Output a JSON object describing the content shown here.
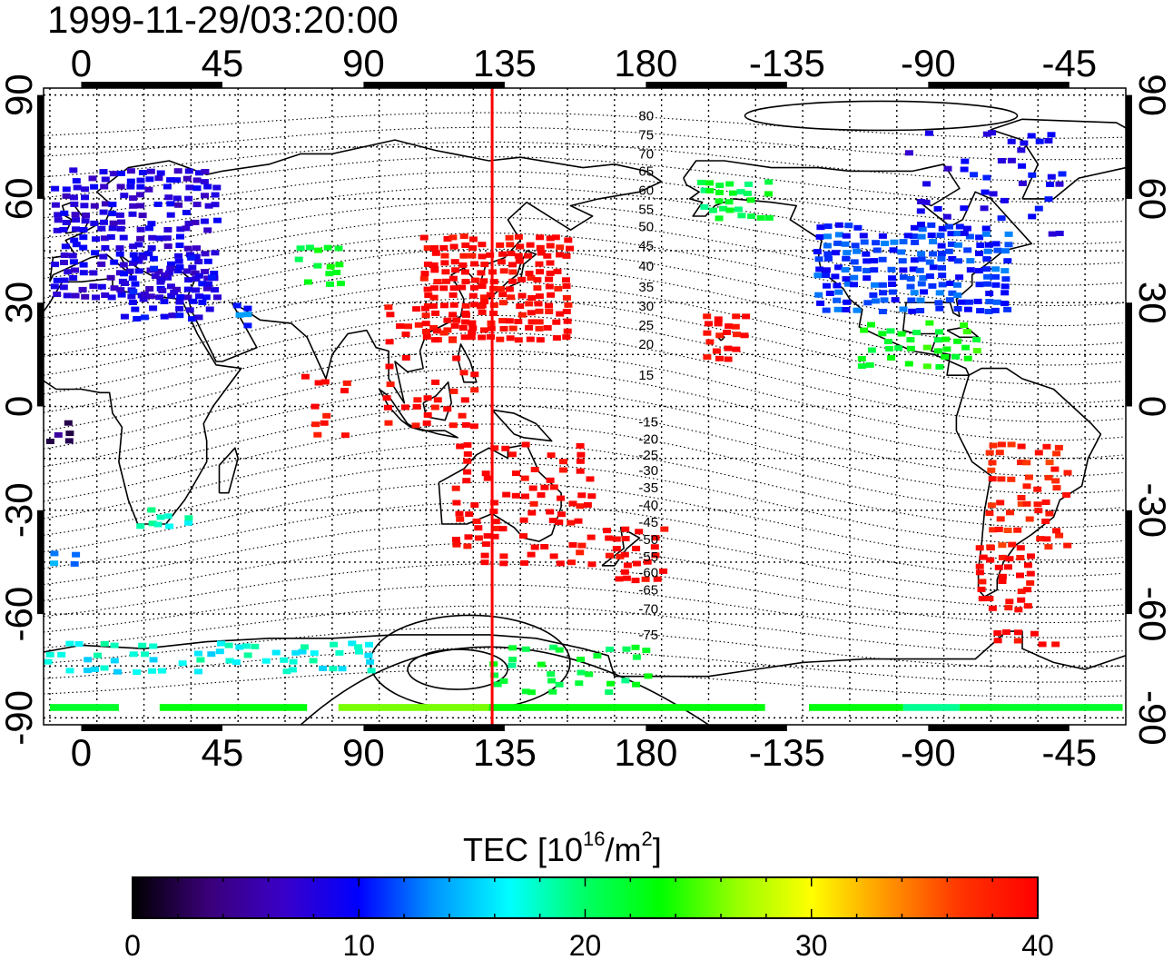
{
  "title": "1999-11-29/03:20:00",
  "map": {
    "lon_ticks": [
      "0",
      "45",
      "90",
      "135",
      "180",
      "-135",
      "-90",
      "-45"
    ],
    "lon_tick_values": [
      0,
      45,
      90,
      135,
      180,
      225,
      270,
      315
    ],
    "lat_ticks": [
      "90",
      "60",
      "30",
      "0",
      "-30",
      "-60",
      "-90"
    ],
    "lat_tick_values": [
      90,
      60,
      30,
      0,
      -30,
      -60,
      -90
    ],
    "lon_range": [
      -12,
      333
    ],
    "lat_range": [
      -92,
      92
    ],
    "grid": "on",
    "meridian_line_lon": 131
  },
  "contour_labels": [
    {
      "text": "80",
      "lat": 84
    },
    {
      "text": "75",
      "lat": 78.5
    },
    {
      "text": "70",
      "lat": 73
    },
    {
      "text": "65",
      "lat": 68
    },
    {
      "text": "60",
      "lat": 62.5
    },
    {
      "text": "55",
      "lat": 57
    },
    {
      "text": "50",
      "lat": 52
    },
    {
      "text": "45",
      "lat": 46.5
    },
    {
      "text": "40",
      "lat": 40.5
    },
    {
      "text": "35",
      "lat": 34.5
    },
    {
      "text": "30",
      "lat": 29
    },
    {
      "text": "25",
      "lat": 23.5
    },
    {
      "text": "20",
      "lat": 18
    },
    {
      "text": "15",
      "lat": 9
    },
    {
      "text": "-15",
      "lat": -4.5
    },
    {
      "text": "-20",
      "lat": -9.5
    },
    {
      "text": "-25",
      "lat": -14
    },
    {
      "text": "-30",
      "lat": -18.5
    },
    {
      "text": "-35",
      "lat": -23.5
    },
    {
      "text": "-40",
      "lat": -28.5
    },
    {
      "text": "-45",
      "lat": -33.5
    },
    {
      "text": "-50",
      "lat": -38.5
    },
    {
      "text": "-55",
      "lat": -43.5
    },
    {
      "text": "-60",
      "lat": -48
    },
    {
      "text": "-65",
      "lat": -53
    },
    {
      "text": "-70",
      "lat": -58.5
    },
    {
      "text": "-75",
      "lat": -66
    }
  ],
  "tec_regions": [
    {
      "lon": [
        -10,
        42
      ],
      "lat": [
        32,
        70
      ],
      "tec": 8,
      "density": 0.75
    },
    {
      "lon": [
        12,
        40
      ],
      "lat": [
        26,
        45
      ],
      "tec": 9,
      "density": 0.55
    },
    {
      "lon": [
        48,
        52
      ],
      "lat": [
        24,
        30
      ],
      "tec": 12,
      "density": 0.8
    },
    {
      "lon": [
        68,
        80
      ],
      "lat": [
        36,
        46
      ],
      "tec": 22,
      "density": 0.55
    },
    {
      "lon": [
        108,
        154
      ],
      "lat": [
        20,
        50
      ],
      "tec": 40,
      "density": 0.85
    },
    {
      "lon": [
        96,
        128
      ],
      "lat": [
        -5,
        32
      ],
      "tec": 40,
      "density": 0.22
    },
    {
      "lon": [
        70,
        82
      ],
      "lat": [
        -10,
        10
      ],
      "tec": 40,
      "density": 0.35
    },
    {
      "lon": [
        118,
        162
      ],
      "lat": [
        -45,
        -10
      ],
      "tec": 40,
      "density": 0.35
    },
    {
      "lon": [
        166,
        184
      ],
      "lat": [
        -50,
        -35
      ],
      "tec": 40,
      "density": 0.45
    },
    {
      "lon": [
        198,
        210
      ],
      "lat": [
        14,
        26
      ],
      "tec": 40,
      "density": 0.6
    },
    {
      "lon": [
        196,
        218
      ],
      "lat": [
        55,
        66
      ],
      "tec": 21,
      "density": 0.65
    },
    {
      "lon": [
        233,
        295
      ],
      "lat": [
        28,
        52
      ],
      "tec": 11,
      "density": 0.8
    },
    {
      "lon": [
        262,
        310
      ],
      "lat": [
        50,
        80
      ],
      "tec": 9,
      "density": 0.2
    },
    {
      "lon": [
        247,
        285
      ],
      "lat": [
        12,
        24
      ],
      "tec": 23,
      "density": 0.35
    },
    {
      "lon": [
        288,
        312
      ],
      "lat": [
        -40,
        -10
      ],
      "tec": 38,
      "density": 0.45
    },
    {
      "lon": [
        285,
        300
      ],
      "lat": [
        -58,
        -40
      ],
      "tec": 40,
      "density": 0.55
    },
    {
      "lon": [
        290,
        308
      ],
      "lat": [
        -68,
        -64
      ],
      "tec": 40,
      "density": 0.6
    },
    {
      "lon": [
        17,
        32
      ],
      "lat": [
        -34,
        -28
      ],
      "tec": 18,
      "density": 0.55
    },
    {
      "lon": [
        -10,
        -4
      ],
      "lat": [
        -45,
        -38
      ],
      "tec": 13,
      "density": 0.5
    },
    {
      "lon": [
        -12,
        -5
      ],
      "lat": [
        -10,
        -3
      ],
      "tec": 3,
      "density": 0.5
    },
    {
      "lon": [
        -12,
        90
      ],
      "lat": [
        -76,
        -68
      ],
      "tec": 17,
      "density": 0.4
    },
    {
      "lon": [
        130,
        180
      ],
      "lat": [
        -82,
        -68
      ],
      "tec": 21,
      "density": 0.3
    }
  ],
  "tec_bands": [
    {
      "lon": [
        -10,
        12
      ],
      "lat": [
        -88,
        -86
      ],
      "tec": 22
    },
    {
      "lon": [
        25,
        72
      ],
      "lat": [
        -88,
        -86
      ],
      "tec": 23
    },
    {
      "lon": [
        82,
        130
      ],
      "lat": [
        -88,
        -86
      ],
      "tec": 26
    },
    {
      "lon": [
        130,
        218
      ],
      "lat": [
        -88,
        -86
      ],
      "tec": 23
    },
    {
      "lon": [
        262,
        280
      ],
      "lat": [
        -88,
        -86
      ],
      "tec": 19
    },
    {
      "lon": [
        232,
        262
      ],
      "lat": [
        -88,
        -86
      ],
      "tec": 23
    },
    {
      "lon": [
        280,
        332
      ],
      "lat": [
        -88,
        -86
      ],
      "tec": 22
    }
  ],
  "colorbar": {
    "title_main": "TEC  [10",
    "title_exp": "16",
    "title_unit": "/m",
    "title_sq": "2",
    "title_close": "]",
    "min": 0,
    "max": 40,
    "ticks": [
      "0",
      "10",
      "20",
      "30",
      "40"
    ],
    "tick_values": [
      0,
      10,
      20,
      30,
      40
    ],
    "stops": [
      "#000000",
      "#3a0078",
      "#3a00c8",
      "#0000ff",
      "#0096ff",
      "#00ffff",
      "#00ff64",
      "#00ff00",
      "#96ff00",
      "#ffff00",
      "#ff9600",
      "#ff3200",
      "#ff0000"
    ]
  },
  "colors": {
    "meridian_line": "#ff0000",
    "coast": "#000000",
    "contour": "#000000",
    "grid": "#000000"
  }
}
